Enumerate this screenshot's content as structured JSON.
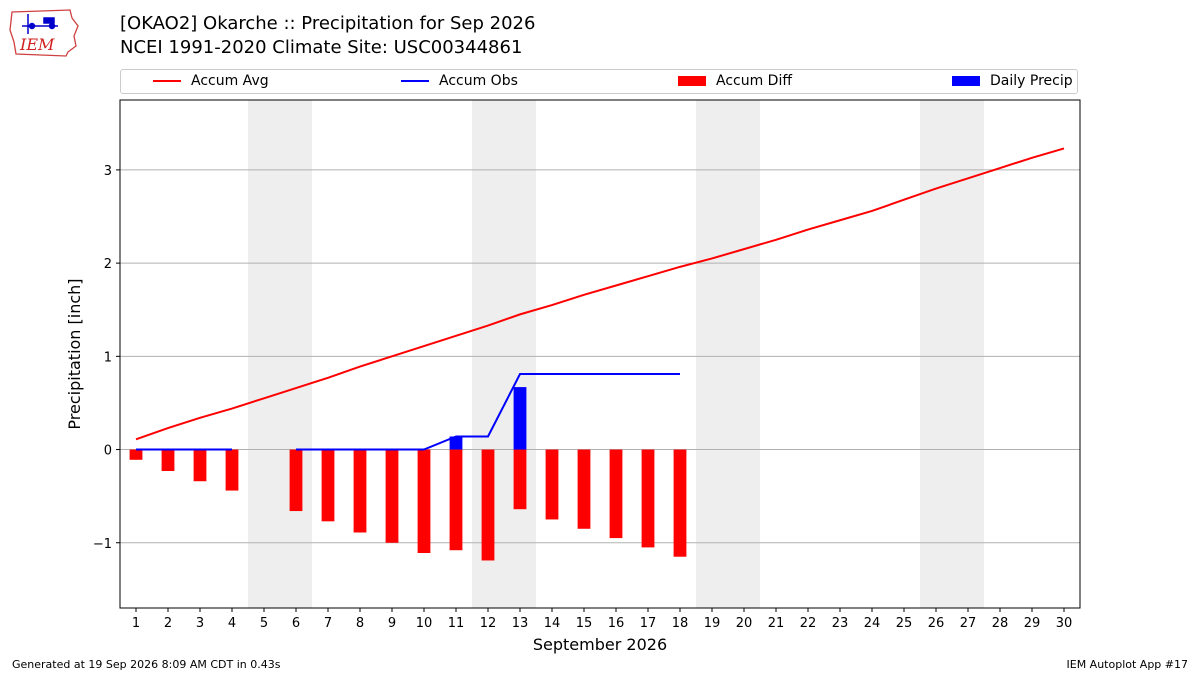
{
  "header": {
    "title_line1": "[OKAO2] Okarche :: Precipitation for Sep 2026",
    "title_line2": "NCEI 1991-2020 Climate Site: USC00344861",
    "logo_text": "IEM"
  },
  "legend": {
    "accum_avg": "Accum Avg",
    "accum_obs": "Accum Obs",
    "accum_diff": "Accum Diff",
    "daily_precip": "Daily Precip"
  },
  "colors": {
    "accum_avg": "#ff0000",
    "accum_obs": "#0000ff",
    "accum_diff": "#ff0000",
    "daily_precip": "#0000ff",
    "weekend_shade": "#eeeeee",
    "grid": "#b0b0b0"
  },
  "footer": {
    "left": "Generated at 19 Sep 2026 8:09 AM CDT in 0.43s",
    "right": "IEM Autoplot App #17"
  },
  "chart_data": {
    "type": "bar",
    "xlabel": "September 2026",
    "ylabel": "Precipitation [inch]",
    "xlim": [
      0.5,
      30.5
    ],
    "ylim": [
      -1.7,
      3.75
    ],
    "yticks": [
      -1,
      0,
      1,
      2,
      3
    ],
    "ytick_labels": [
      "−1",
      "0",
      "1",
      "2",
      "3"
    ],
    "xticks": [
      1,
      2,
      3,
      4,
      5,
      6,
      7,
      8,
      9,
      10,
      11,
      12,
      13,
      14,
      15,
      16,
      17,
      18,
      19,
      20,
      21,
      22,
      23,
      24,
      25,
      26,
      27,
      28,
      29,
      30
    ],
    "grid": "horizontal",
    "legend_position": "top",
    "weekend_days": [
      5,
      6,
      12,
      13,
      19,
      20,
      26,
      27
    ],
    "accum_avg": {
      "days": [
        1,
        2,
        3,
        4,
        5,
        6,
        7,
        8,
        9,
        10,
        11,
        12,
        13,
        14,
        15,
        16,
        17,
        18,
        19,
        20,
        21,
        22,
        23,
        24,
        25,
        26,
        27,
        28,
        29,
        30
      ],
      "values": [
        0.11,
        0.23,
        0.34,
        0.44,
        0.55,
        0.66,
        0.77,
        0.89,
        1.0,
        1.11,
        1.22,
        1.33,
        1.45,
        1.55,
        1.66,
        1.76,
        1.86,
        1.96,
        2.05,
        2.15,
        2.25,
        2.36,
        2.46,
        2.56,
        2.68,
        2.8,
        2.91,
        3.02,
        3.13,
        3.23
      ]
    },
    "accum_obs": {
      "segments": [
        {
          "days": [
            1,
            2,
            3,
            4
          ],
          "values": [
            0,
            0,
            0,
            0
          ]
        },
        {
          "days": [
            6,
            7,
            8,
            9,
            10,
            11,
            12,
            13,
            14,
            15,
            16,
            17,
            18
          ],
          "values": [
            0,
            0,
            0,
            0,
            0,
            0.14,
            0.14,
            0.81,
            0.81,
            0.81,
            0.81,
            0.81,
            0.81
          ]
        }
      ]
    },
    "accum_diff": {
      "days": [
        1,
        2,
        3,
        4,
        6,
        7,
        8,
        9,
        10,
        11,
        12,
        13,
        14,
        15,
        16,
        17,
        18
      ],
      "values": [
        -0.11,
        -0.23,
        -0.34,
        -0.44,
        -0.66,
        -0.77,
        -0.89,
        -1.0,
        -1.11,
        -1.08,
        -1.19,
        -0.64,
        -0.75,
        -0.85,
        -0.95,
        -1.05,
        -1.15
      ]
    },
    "daily_precip": {
      "days": [
        11,
        13
      ],
      "values": [
        0.14,
        0.67
      ]
    }
  }
}
